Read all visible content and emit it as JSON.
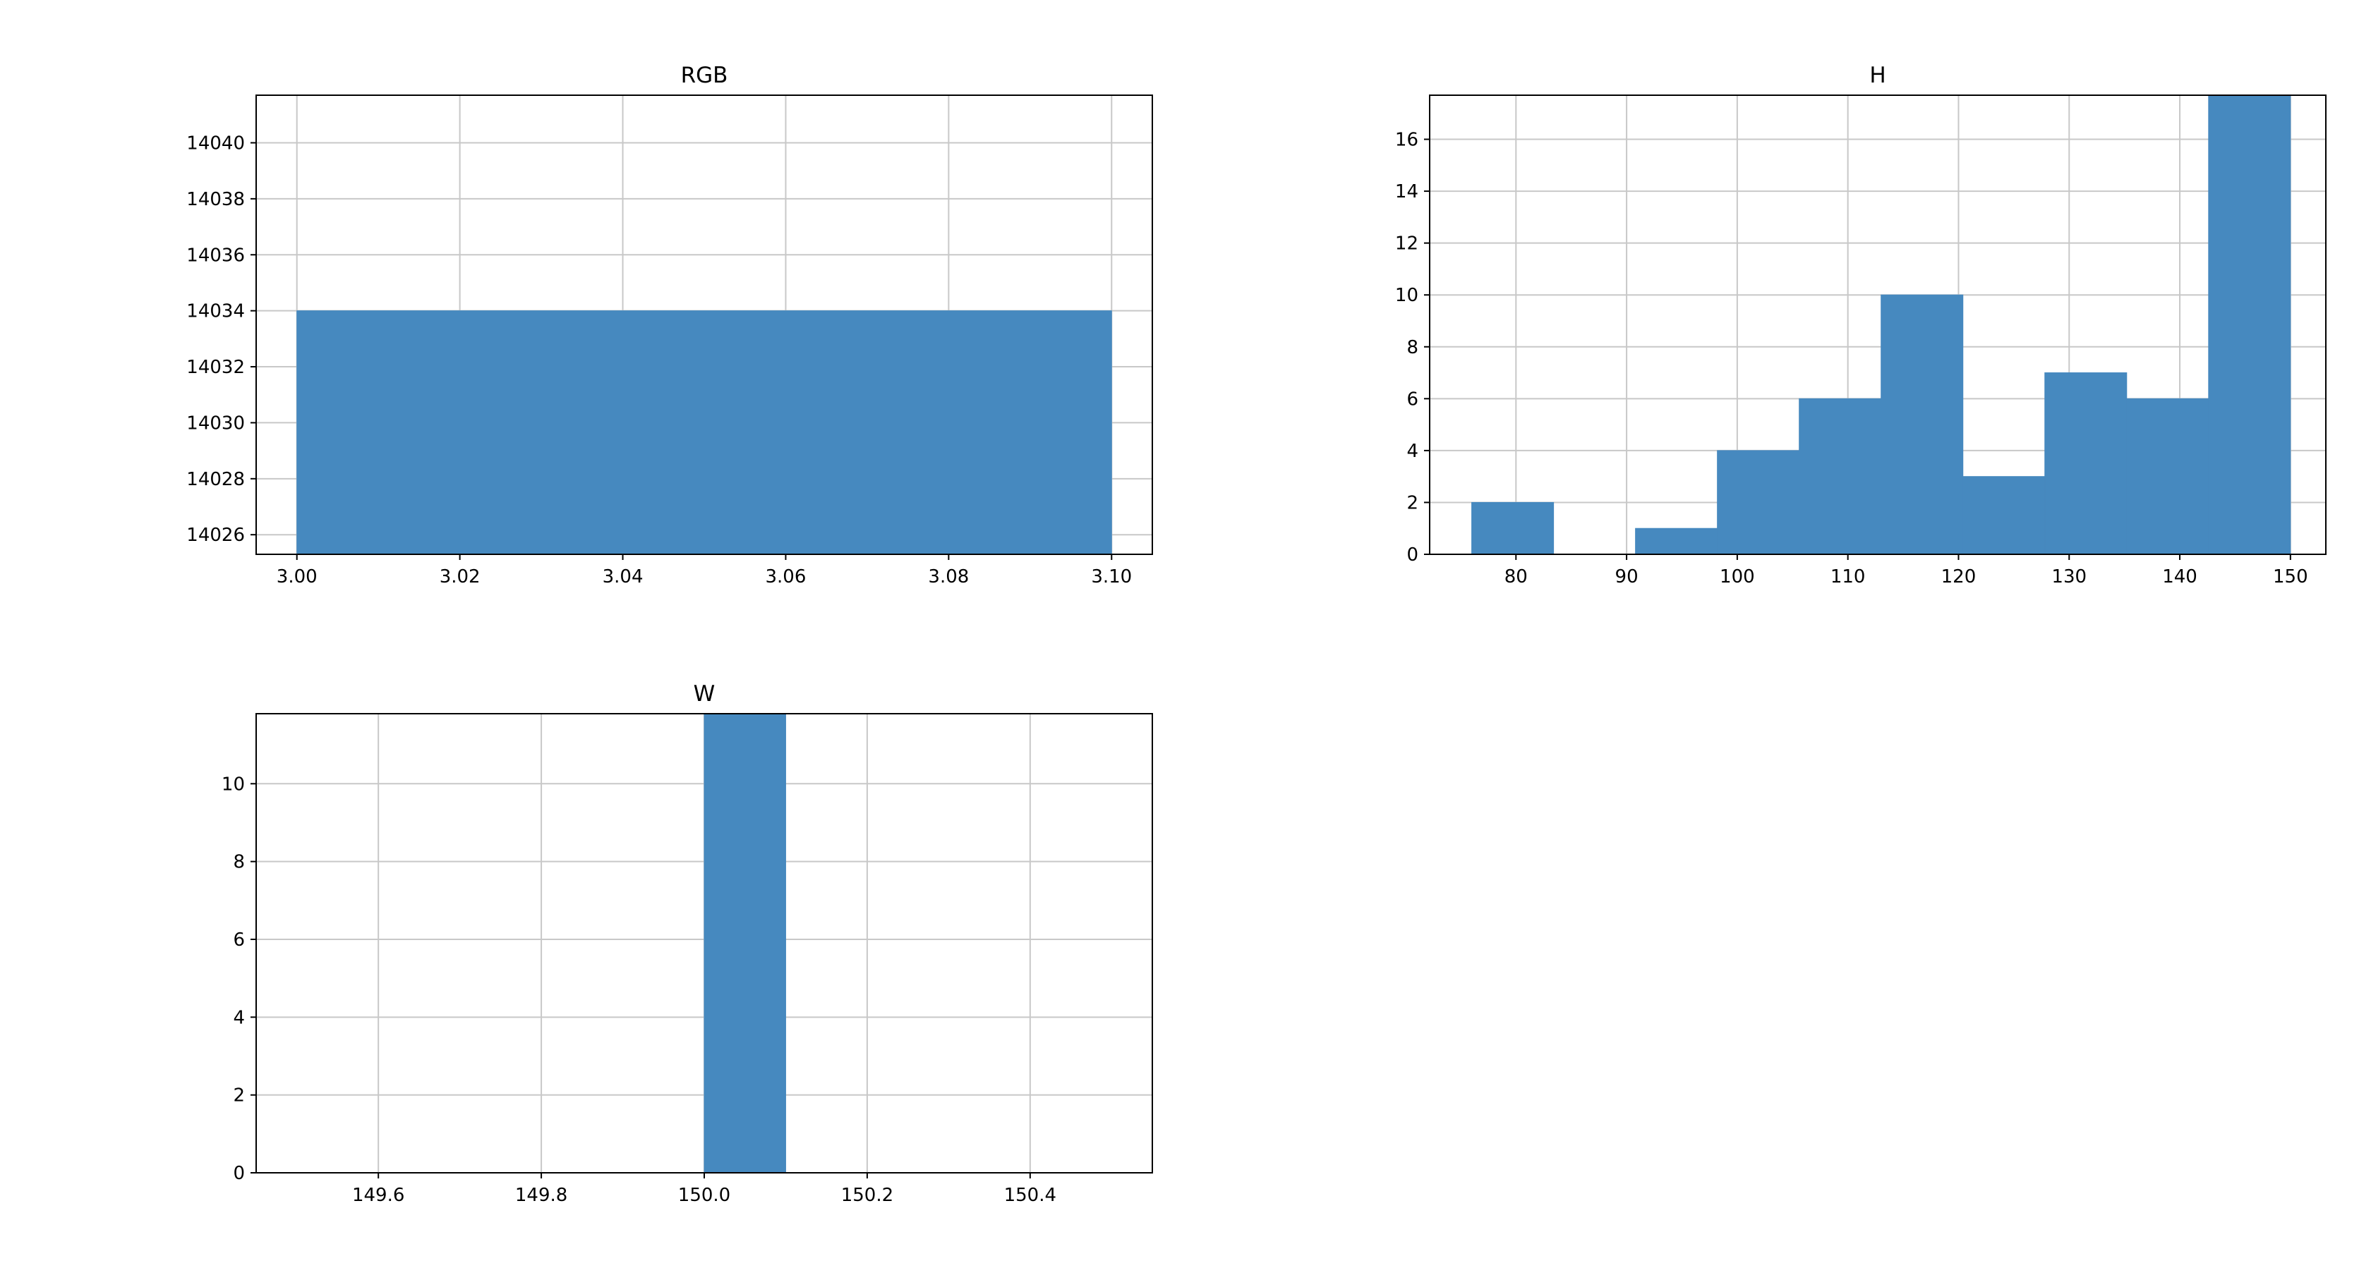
{
  "chart_data": [
    {
      "type": "bar",
      "title": "RGB",
      "xlabel": "",
      "ylabel": "",
      "xlim": [
        2.995,
        3.105
      ],
      "ylim": [
        14025.3,
        14041.7
      ],
      "xticks": [
        "3.00",
        "3.02",
        "3.04",
        "3.06",
        "3.08",
        "3.10"
      ],
      "yticks": [
        "14026",
        "14028",
        "14030",
        "14032",
        "14034",
        "14036",
        "14038",
        "14040"
      ],
      "grid": true,
      "bins": [
        {
          "x0": 3.0,
          "x1": 3.1,
          "count": 14034
        }
      ]
    },
    {
      "type": "bar",
      "title": "H",
      "xlabel": "",
      "ylabel": "",
      "xlim": [
        72.2,
        153.2
      ],
      "ylim": [
        0,
        17.7
      ],
      "xticks": [
        "80",
        "90",
        "100",
        "110",
        "120",
        "130",
        "140",
        "150"
      ],
      "yticks": [
        "0",
        "2",
        "4",
        "6",
        "8",
        "10",
        "12",
        "14",
        "16"
      ],
      "grid": true,
      "bins": [
        {
          "x0": 76.0,
          "x1": 83.4,
          "count": 2
        },
        {
          "x0": 83.4,
          "x1": 90.8,
          "count": 0
        },
        {
          "x0": 90.8,
          "x1": 98.2,
          "count": 1
        },
        {
          "x0": 98.2,
          "x1": 105.6,
          "count": 4
        },
        {
          "x0": 105.6,
          "x1": 113.0,
          "count": 6
        },
        {
          "x0": 113.0,
          "x1": 120.4,
          "count": 10
        },
        {
          "x0": 120.4,
          "x1": 127.8,
          "count": 3
        },
        {
          "x0": 127.8,
          "x1": 135.2,
          "count": 7
        },
        {
          "x0": 135.2,
          "x1": 142.6,
          "count": 6
        },
        {
          "x0": 142.6,
          "x1": 150.0,
          "count": 18
        }
      ]
    },
    {
      "type": "bar",
      "title": "W",
      "xlabel": "",
      "ylabel": "",
      "xlim": [
        149.45,
        150.55
      ],
      "ylim": [
        0,
        11.8
      ],
      "xticks": [
        "149.6",
        "149.8",
        "150.0",
        "150.2",
        "150.4"
      ],
      "yticks": [
        "0",
        "2",
        "4",
        "6",
        "8",
        "10"
      ],
      "grid": true,
      "bins": [
        {
          "x0": 150.0,
          "x1": 150.1,
          "count": 12
        }
      ]
    }
  ],
  "colors": {
    "bar": "#4689bf",
    "grid": "#c8c8c8",
    "axis": "#000000",
    "background": "#ffffff"
  }
}
